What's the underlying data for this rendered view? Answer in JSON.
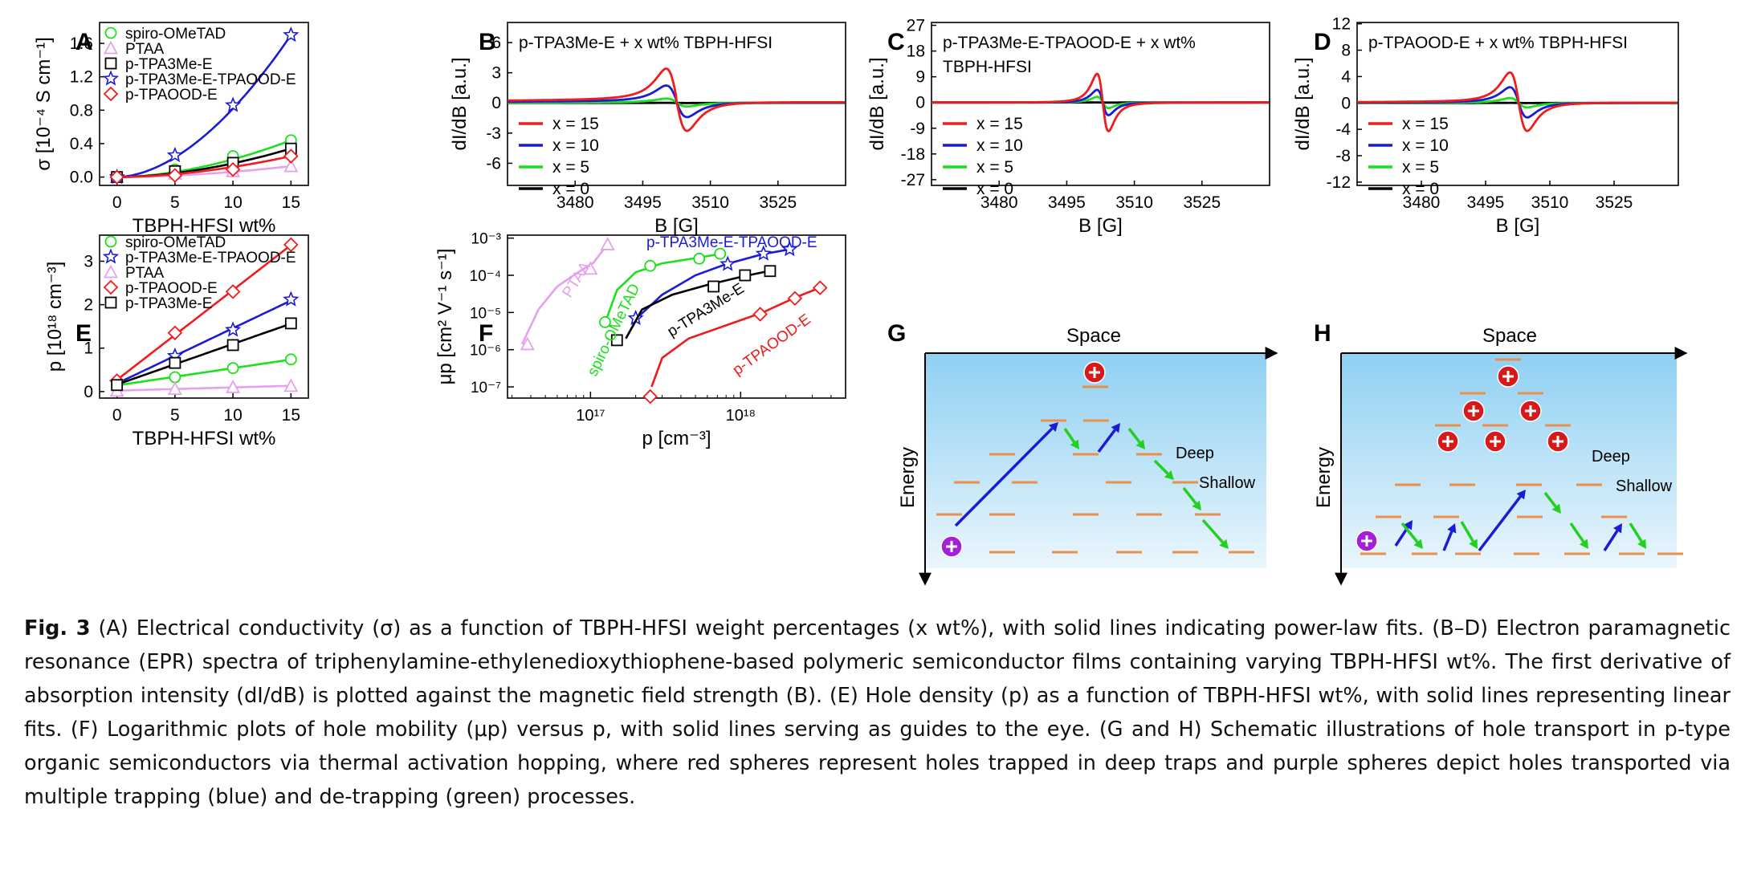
{
  "caption": {
    "label": "Fig. 3",
    "text": " (A) Electrical conductivity (σ) as a function of TBPH-HFSI weight percentages (x wt%), with solid lines indicating power-law fits. (B–D) Electron paramagnetic resonance (EPR) spectra of triphenylamine-ethylenedioxythiophene-based polymeric semiconductor films containing varying TBPH-HFSI wt%. The first derivative of absorption intensity (dI/dB) is plotted against the magnetic field strength (B). (E) Hole density (p) as a function of TBPH-HFSI wt%, with solid lines representing linear fits. (F) Logarithmic plots of hole mobility (μp) versus p, with solid lines serving as guides to the eye. (G and H) Schematic illustrations of hole transport in p-type organic semiconductors via thermal activation hopping, where red spheres represent holes trapped in deep traps and purple spheres depict holes transported via multiple trapping (blue) and de-trapping (green) processes."
  },
  "colors": {
    "green": "#1de01d",
    "blue": "#1b1bd6",
    "red": "#ee1c1c",
    "black": "#000000",
    "pink": "#e6a0ee",
    "orange": "#e9904a"
  },
  "chart_data": [
    {
      "panel": "A",
      "type": "scatter",
      "xlabel": "TBPH-HFSI wt%",
      "ylabel": "σ [10⁻⁴ S cm⁻¹]",
      "xlim": [
        -1.5,
        16.5
      ],
      "ylim": [
        -0.1,
        1.85
      ],
      "xticks": [
        "0",
        "5",
        "10",
        "15"
      ],
      "yticks": [
        "0.0",
        "0.4",
        "0.8",
        "1.2",
        "1.6"
      ],
      "x": [
        0,
        5,
        10,
        15
      ],
      "series": [
        {
          "name": "spiro-OMeTAD",
          "marker": "circle",
          "color": "green",
          "values": [
            0.0,
            0.09,
            0.25,
            0.44
          ]
        },
        {
          "name": "PTAA",
          "marker": "triangle",
          "color": "pink",
          "values": [
            0.0,
            0.04,
            0.07,
            0.13
          ]
        },
        {
          "name": "p-TPA3Me-E",
          "marker": "square",
          "color": "black",
          "values": [
            0.0,
            0.07,
            0.17,
            0.34
          ]
        },
        {
          "name": "p-TPA3Me-E-TPAOOD-E",
          "marker": "star",
          "color": "blue",
          "values": [
            0.0,
            0.26,
            0.86,
            1.7
          ]
        },
        {
          "name": "p-TPAOOD-E",
          "marker": "diamond",
          "color": "red",
          "values": [
            0.0,
            0.02,
            0.09,
            0.25
          ]
        }
      ]
    },
    {
      "panel": "B",
      "type": "line",
      "title": "p-TPA3Me-E + x wt% TBPH-HFSI",
      "xlabel": "B [G]",
      "ylabel": "dI/dB [a.u.]",
      "xlim": [
        3465,
        3540
      ],
      "ylim": [
        -8.2,
        8.0
      ],
      "xticks": [
        "3480",
        "3495",
        "3510",
        "3525"
      ],
      "yticks": [
        "-6",
        "-3",
        "0",
        "3",
        "6"
      ],
      "center": 3502.5,
      "width": 4.0,
      "baseline_offset": 0.5,
      "series": [
        {
          "name": "x = 15",
          "color": "red",
          "amplitude": 6.3
        },
        {
          "name": "x = 10",
          "color": "blue",
          "amplitude": 3.2
        },
        {
          "name": "x = 5",
          "color": "green",
          "amplitude": 0.8
        },
        {
          "name": "x = 0",
          "color": "black",
          "amplitude": 0.02
        }
      ]
    },
    {
      "panel": "C",
      "type": "line",
      "title": "p-TPA3Me-E-TPAOOD-E + x wt% TBPH-HFSI",
      "xlabel": "B [G]",
      "ylabel": "dI/dB [a.u.]",
      "xlim": [
        3465,
        3540
      ],
      "ylim": [
        -29,
        28
      ],
      "xticks": [
        "3480",
        "3495",
        "3510",
        "3525"
      ],
      "yticks": [
        "-27",
        "-18",
        "-9",
        "0",
        "9",
        "18",
        "27"
      ],
      "center": 3503.0,
      "width": 2.2,
      "baseline_offset": 0.0,
      "series": [
        {
          "name": "x = 15",
          "color": "red",
          "amplitude": 21.5
        },
        {
          "name": "x = 10",
          "color": "blue",
          "amplitude": 9.5
        },
        {
          "name": "x = 5",
          "color": "green",
          "amplitude": 4.2
        },
        {
          "name": "x = 0",
          "color": "black",
          "amplitude": 0.05
        }
      ]
    },
    {
      "panel": "D",
      "type": "line",
      "title": "p-TPAOOD-E + x wt% TBPH-HFSI",
      "xlabel": "B [G]",
      "ylabel": "dI/dB [a.u.]",
      "xlim": [
        3465,
        3540
      ],
      "ylim": [
        -12.5,
        12.2
      ],
      "xticks": [
        "3480",
        "3495",
        "3510",
        "3525"
      ],
      "yticks": [
        "-12",
        "-8",
        "-4",
        "0",
        "4",
        "8",
        "12"
      ],
      "center": 3502.7,
      "width": 3.5,
      "baseline_offset": 0.3,
      "series": [
        {
          "name": "x = 15",
          "color": "red",
          "amplitude": 9.3
        },
        {
          "name": "x = 10",
          "color": "blue",
          "amplitude": 4.8
        },
        {
          "name": "x = 5",
          "color": "green",
          "amplitude": 1.5
        },
        {
          "name": "x = 0",
          "color": "black",
          "amplitude": 0.03
        }
      ]
    },
    {
      "panel": "E",
      "type": "scatter",
      "xlabel": "TBPH-HFSI wt%",
      "ylabel": "p [10¹⁸ cm⁻³]",
      "xlim": [
        -1.5,
        16.5
      ],
      "ylim": [
        -0.15,
        3.6
      ],
      "xticks": [
        "0",
        "5",
        "10",
        "15"
      ],
      "yticks": [
        "0",
        "1",
        "2",
        "3"
      ],
      "x": [
        0,
        5,
        10,
        15
      ],
      "series": [
        {
          "name": "spiro-OMeTAD",
          "marker": "circle",
          "color": "green",
          "values": [
            0.15,
            0.33,
            0.54,
            0.74
          ]
        },
        {
          "name": "p-TPA3Me-E-TPAOOD-E",
          "marker": "star",
          "color": "blue",
          "values": [
            0.2,
            0.82,
            1.42,
            2.12
          ]
        },
        {
          "name": "PTAA",
          "marker": "triangle",
          "color": "pink",
          "values": [
            0.02,
            0.06,
            0.1,
            0.13
          ]
        },
        {
          "name": "p-TPAOOD-E",
          "marker": "diamond",
          "color": "red",
          "values": [
            0.25,
            1.35,
            2.3,
            3.38
          ]
        },
        {
          "name": "p-TPA3Me-E",
          "marker": "square",
          "color": "black",
          "values": [
            0.15,
            0.66,
            1.07,
            1.57
          ]
        }
      ]
    },
    {
      "panel": "F",
      "type": "scatter",
      "scale": "log",
      "xlabel": "p [cm⁻³]",
      "ylabel": "μp [cm² V⁻¹ s⁻¹]",
      "xlim": [
        2.8e+16,
        5e+18
      ],
      "ylim": [
        5e-08,
        0.0012
      ],
      "xticks": [
        "10¹⁷",
        "10¹⁸"
      ],
      "yticks": [
        "10⁻⁷",
        "10⁻⁶",
        "10⁻⁵",
        "10⁻⁴",
        "10⁻³"
      ],
      "series": [
        {
          "name": "PTAA",
          "marker": "triangle",
          "color": "pink",
          "points": [
            [
              3.8e+16,
              1.4e-06
            ],
            [
              1e+17,
              0.00015
            ],
            [
              1.3e+17,
              0.00068
            ]
          ],
          "curve": [
            [
              3.5e+16,
              1.4e-06
            ],
            [
              4.5e+16,
              1.2e-05
            ],
            [
              6e+16,
              5e-05
            ],
            [
              8e+16,
              0.00011
            ],
            [
              1.05e+17,
              0.00022
            ],
            [
              1.3e+17,
              0.0007
            ]
          ]
        },
        {
          "name": "spiro-OMeTAD",
          "marker": "circle",
          "color": "green",
          "points": [
            [
              1.25e+17,
              5.5e-06
            ],
            [
              2.5e+17,
              0.00018
            ],
            [
              5.3e+17,
              0.00028
            ],
            [
              7.3e+17,
              0.00038
            ]
          ],
          "curve": [
            [
              1.22e+17,
              4e-06
            ],
            [
              1.5e+17,
              4e-05
            ],
            [
              2e+17,
              0.00012
            ],
            [
              3e+17,
              0.00021
            ],
            [
              5e+17,
              0.00029
            ],
            [
              7.5e+17,
              0.00038
            ]
          ]
        },
        {
          "name": "p-TPA3Me-E-TPAOOD-E",
          "marker": "star",
          "color": "blue",
          "points": [
            [
              2e+17,
              7e-06
            ],
            [
              8.2e+17,
              0.0002
            ],
            [
              1.42e+18,
              0.00038
            ],
            [
              2.12e+18,
              0.0005
            ]
          ],
          "curve": [
            [
              1.95e+17,
              6e-06
            ],
            [
              3e+17,
              3e-05
            ],
            [
              5e+17,
              0.0001
            ],
            [
              8e+17,
              0.0002
            ],
            [
              1.4e+18,
              0.00037
            ],
            [
              2.2e+18,
              0.00051
            ]
          ]
        },
        {
          "name": "p-TPA3Me-E",
          "marker": "square",
          "color": "black",
          "points": [
            [
              1.5e+17,
              1.8e-06
            ],
            [
              6.6e+17,
              5e-05
            ],
            [
              1.07e+18,
              0.0001
            ],
            [
              1.57e+18,
              0.00013
            ]
          ],
          "curve": [
            [
              1.72e+17,
              2e-06
            ],
            [
              2.2e+17,
              1.2e-05
            ],
            [
              3.5e+17,
              3e-05
            ],
            [
              6e+17,
              5.5e-05
            ],
            [
              1e+18,
              9e-05
            ],
            [
              1.6e+18,
              0.000135
            ]
          ]
        },
        {
          "name": "p-TPAOOD-E",
          "marker": "diamond",
          "color": "red",
          "points": [
            [
              2.5e+17,
              5.5e-08
            ],
            [
              1.35e+18,
              9e-06
            ],
            [
              2.3e+18,
              2.4e-05
            ],
            [
              3.38e+18,
              4.6e-05
            ]
          ],
          "curve": [
            [
              2.55e+17,
              1e-07
            ],
            [
              3e+17,
              6e-07
            ],
            [
              4.5e+17,
              2e-06
            ],
            [
              8e+17,
              4.5e-06
            ],
            [
              1.4e+18,
              1e-05
            ],
            [
              2.3e+18,
              2.5e-05
            ],
            [
              3.4e+18,
              4.7e-05
            ]
          ]
        }
      ]
    }
  ],
  "panels": {
    "A": {
      "letter": "A"
    },
    "B": {
      "letter": "B"
    },
    "C": {
      "letter": "C"
    },
    "D": {
      "letter": "D"
    },
    "E": {
      "letter": "E"
    },
    "F": {
      "letter": "F"
    },
    "G": {
      "letter": "G",
      "space": "Space",
      "energy": "Energy",
      "deep": "Deep",
      "shallow": "Shallow"
    },
    "H": {
      "letter": "H",
      "space": "Space",
      "energy": "Energy",
      "deep": "Deep",
      "shallow": "Shallow"
    }
  },
  "legend_B_title": "p-TPA3Me-E + x wt% TBPH-HFSI",
  "legend_C_title_1": "p-TPA3Me-E-TPAOOD-E + x wt%",
  "legend_C_title_2": "TBPH-HFSI",
  "legend_D_title": "p-TPAOOD-E + x wt% TBPH-HFSI",
  "F_labels": [
    "PTAA",
    "spiro-OMeTAD",
    "p-TPA3Me-E-TPAOOD-E",
    "p-TPA3Me-E",
    "p-TPAOOD-E"
  ]
}
